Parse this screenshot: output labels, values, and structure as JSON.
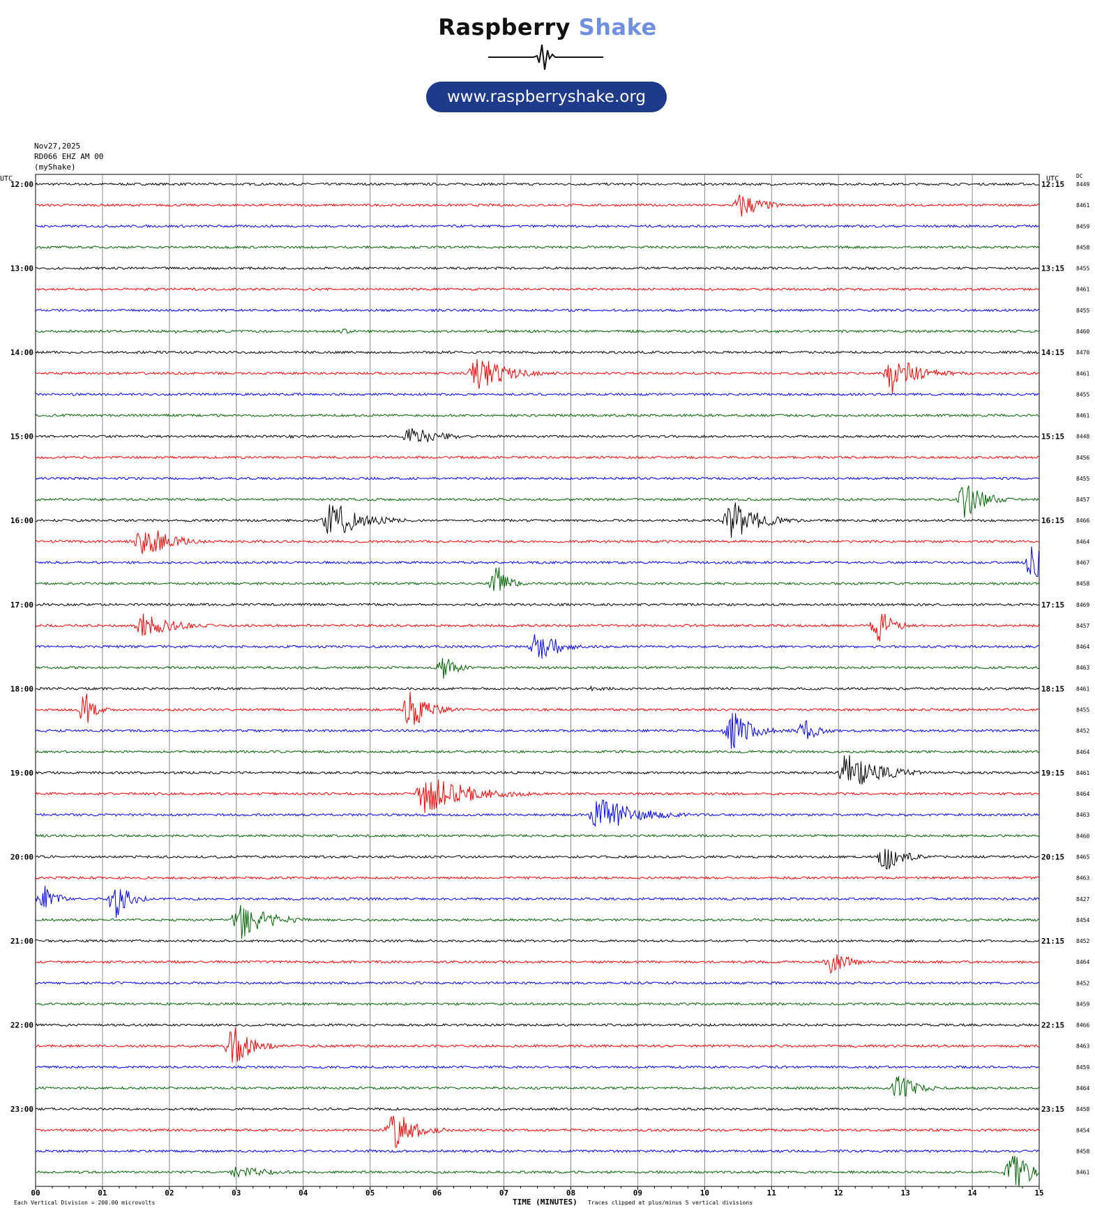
{
  "brand": {
    "word1": "Raspberry",
    "word2": "Shake",
    "url": "www.raspberryshake.org"
  },
  "meta": {
    "date": "Nov27,2025",
    "station": "RD066 EHZ AM 00",
    "network": "(myShake)"
  },
  "chart_data": {
    "type": "line",
    "title": "",
    "xlabel": "TIME (MINUTES)",
    "left_axis_label": "UTC",
    "right_axis_label": "UTC",
    "dc_label": "DC",
    "footer_left": "Each Vertical Division =  200.00 microvolts",
    "footer_note": "Traces clipped at plus/minus 5 vertical divisions",
    "x_range": [
      0,
      15
    ],
    "x_ticks": [
      "00",
      "01",
      "02",
      "03",
      "04",
      "05",
      "06",
      "07",
      "08",
      "09",
      "10",
      "11",
      "12",
      "13",
      "14",
      "15"
    ],
    "left_hour_labels": [
      "12:00",
      "13:00",
      "14:00",
      "15:00",
      "16:00",
      "17:00",
      "18:00",
      "19:00",
      "20:00",
      "21:00",
      "22:00",
      "23:00"
    ],
    "right_hour_labels": [
      "12:15",
      "13:15",
      "14:15",
      "15:15",
      "16:15",
      "17:15",
      "18:15",
      "19:15",
      "20:15",
      "21:15",
      "22:15",
      "23:15"
    ],
    "trace_colors": [
      "#000000",
      "#ff0000",
      "#0000ff",
      "#006400"
    ],
    "dc_offsets": [
      8449,
      8461,
      8459,
      8458,
      8455,
      8461,
      8455,
      8460,
      8470,
      8461,
      8455,
      8461,
      8448,
      8456,
      8455,
      8457,
      8466,
      8464,
      8467,
      8458,
      8469,
      8457,
      8464,
      8463,
      8461,
      8455,
      8452,
      8464,
      8461,
      8464,
      8463,
      8460,
      8465,
      8463,
      8427,
      8454,
      8452,
      8464,
      8452,
      8459,
      8466,
      8463,
      8459,
      8464,
      8458,
      8454,
      8458,
      8461
    ],
    "events": [
      {
        "trace": 1,
        "minute": 10.55,
        "amplitude": 3.5,
        "duration": 0.9
      },
      {
        "trace": 7,
        "minute": 2.1,
        "amplitude": 0.6,
        "duration": 0.2
      },
      {
        "trace": 7,
        "minute": 4.6,
        "amplitude": 0.7,
        "duration": 0.6
      },
      {
        "trace": 8,
        "minute": 6.1,
        "amplitude": 0.5,
        "duration": 0.2
      },
      {
        "trace": 9,
        "minute": 6.6,
        "amplitude": 5,
        "duration": 1.2
      },
      {
        "trace": 9,
        "minute": 12.8,
        "amplitude": 5,
        "duration": 1.2
      },
      {
        "trace": 11,
        "minute": 11.6,
        "amplitude": 0.5,
        "duration": 0.6
      },
      {
        "trace": 12,
        "minute": 5.6,
        "amplitude": 2.5,
        "duration": 1.3
      },
      {
        "trace": 12,
        "minute": 3.8,
        "amplitude": 0.5,
        "duration": 0.8
      },
      {
        "trace": 15,
        "minute": 13.9,
        "amplitude": 5,
        "duration": 0.8
      },
      {
        "trace": 16,
        "minute": 4.4,
        "amplitude": 5,
        "duration": 1.4
      },
      {
        "trace": 16,
        "minute": 10.4,
        "amplitude": 5,
        "duration": 1.2
      },
      {
        "trace": 17,
        "minute": 1.6,
        "amplitude": 5,
        "duration": 1.1
      },
      {
        "trace": 18,
        "minute": 14.9,
        "amplitude": 5,
        "duration": 0.6
      },
      {
        "trace": 19,
        "minute": 6.9,
        "amplitude": 5,
        "duration": 0.5
      },
      {
        "trace": 20,
        "minute": 0.1,
        "amplitude": 0.5,
        "duration": 0.3
      },
      {
        "trace": 21,
        "minute": 1.6,
        "amplitude": 3,
        "duration": 1.4
      },
      {
        "trace": 21,
        "minute": 12.6,
        "amplitude": 5,
        "duration": 0.6
      },
      {
        "trace": 22,
        "minute": 7.5,
        "amplitude": 5,
        "duration": 0.8
      },
      {
        "trace": 23,
        "minute": 6.1,
        "amplitude": 4,
        "duration": 0.5
      },
      {
        "trace": 24,
        "minute": 8.3,
        "amplitude": 0.7,
        "duration": 1.0
      },
      {
        "trace": 25,
        "minute": 0.75,
        "amplitude": 4.5,
        "duration": 0.4
      },
      {
        "trace": 25,
        "minute": 5.6,
        "amplitude": 5,
        "duration": 0.8
      },
      {
        "trace": 26,
        "minute": 10.4,
        "amplitude": 5,
        "duration": 1.0
      },
      {
        "trace": 26,
        "minute": 11.5,
        "amplitude": 3,
        "duration": 0.6
      },
      {
        "trace": 28,
        "minute": 12.1,
        "amplitude": 5,
        "duration": 1.5
      },
      {
        "trace": 29,
        "minute": 5.8,
        "amplitude": 5,
        "duration": 2.0
      },
      {
        "trace": 30,
        "minute": 8.4,
        "amplitude": 5,
        "duration": 1.6
      },
      {
        "trace": 32,
        "minute": 12.7,
        "amplitude": 4,
        "duration": 0.8
      },
      {
        "trace": 33,
        "minute": 14.9,
        "amplitude": 0.4,
        "duration": 0.2
      },
      {
        "trace": 34,
        "minute": 0.15,
        "amplitude": 5,
        "duration": 0.4
      },
      {
        "trace": 34,
        "minute": 1.2,
        "amplitude": 5,
        "duration": 0.6
      },
      {
        "trace": 35,
        "minute": 3.05,
        "amplitude": 5,
        "duration": 1.2
      },
      {
        "trace": 37,
        "minute": 11.9,
        "amplitude": 3,
        "duration": 0.8
      },
      {
        "trace": 41,
        "minute": 2.95,
        "amplitude": 5,
        "duration": 0.9
      },
      {
        "trace": 43,
        "minute": 12.9,
        "amplitude": 3.5,
        "duration": 0.8
      },
      {
        "trace": 45,
        "minute": 5.35,
        "amplitude": 5,
        "duration": 1.0
      },
      {
        "trace": 47,
        "minute": 14.6,
        "amplitude": 5,
        "duration": 0.9
      },
      {
        "trace": 47,
        "minute": 3.0,
        "amplitude": 1.5,
        "duration": 1.6
      }
    ]
  }
}
